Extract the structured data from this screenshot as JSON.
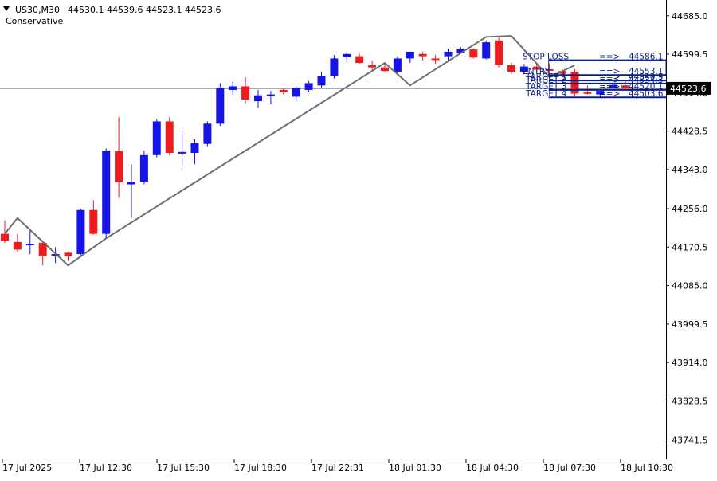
{
  "header": {
    "symbol_timeframe": "US30,M30",
    "ohlc": "44530.1 44539.6 44523.1 44523.6",
    "indicator_name": "Conservative"
  },
  "colors": {
    "bull": "#1414e6",
    "bear": "#ee1c1c",
    "zigzag": "#6e6e6e",
    "level_line": "#0b1f8a",
    "level_text": "#0b1f8a",
    "price_line": "#1a1a2e",
    "axis": "#000000"
  },
  "price_label": "44523.6",
  "levels": [
    {
      "name": "STOP LOSS",
      "arrow": "==>",
      "value_text": "44586.1",
      "value": 44586.1
    },
    {
      "name": "ENTRY",
      "arrow": "==>",
      "value_text": "44553.1",
      "value": 44553.1
    },
    {
      "name": "TARGET 1",
      "arrow": "==>",
      "value_text": "44540.9",
      "value": 44540.9
    },
    {
      "name": "TARGET 2",
      "arrow": "==>",
      "value_text": "44534.3",
      "value": 44534.3
    },
    {
      "name": "TARGET 3",
      "arrow": "==>",
      "value_text": "44520.1",
      "value": 44520.1
    },
    {
      "name": "TARGET 4",
      "arrow": "==>",
      "value_text": "44503.6",
      "value": 44503.6
    }
  ],
  "chart_data": {
    "type": "candlestick",
    "symbol": "US30",
    "timeframe": "M30",
    "ylim": [
      43700,
      44720
    ],
    "y_ticks": [
      "44685.0",
      "44599.5",
      "44514.0",
      "44428.5",
      "44343.0",
      "44256.0",
      "44170.5",
      "44085.0",
      "43999.5",
      "43914.0",
      "43828.5",
      "43741.5"
    ],
    "x_tick_labels": [
      "17 Jul 2025",
      "17 Jul 12:30",
      "17 Jul 15:30",
      "17 Jul 18:30",
      "17 Jul 22:31",
      "18 Jul 01:30",
      "18 Jul 04:30",
      "18 Jul 07:30",
      "18 Jul 10:30"
    ],
    "candles": [
      {
        "o": 44200,
        "h": 44230,
        "l": 44180,
        "c": 44185
      },
      {
        "o": 44182,
        "h": 44200,
        "l": 44160,
        "c": 44165
      },
      {
        "o": 44175,
        "h": 44210,
        "l": 44155,
        "c": 44178
      },
      {
        "o": 44180,
        "h": 44185,
        "l": 44130,
        "c": 44150
      },
      {
        "o": 44150,
        "h": 44170,
        "l": 44135,
        "c": 44155
      },
      {
        "o": 44158,
        "h": 44160,
        "l": 44140,
        "c": 44150
      },
      {
        "o": 44155,
        "h": 44255,
        "l": 44148,
        "c": 44253
      },
      {
        "o": 44253,
        "h": 44275,
        "l": 44198,
        "c": 44200
      },
      {
        "o": 44200,
        "h": 44390,
        "l": 44192,
        "c": 44385
      },
      {
        "o": 44384,
        "h": 44460,
        "l": 44280,
        "c": 44315
      },
      {
        "o": 44310,
        "h": 44355,
        "l": 44235,
        "c": 44315
      },
      {
        "o": 44315,
        "h": 44385,
        "l": 44310,
        "c": 44375
      },
      {
        "o": 44375,
        "h": 44455,
        "l": 44370,
        "c": 44450
      },
      {
        "o": 44450,
        "h": 44460,
        "l": 44375,
        "c": 44380
      },
      {
        "o": 44380,
        "h": 44430,
        "l": 44350,
        "c": 44382
      },
      {
        "o": 44380,
        "h": 44410,
        "l": 44355,
        "c": 44402
      },
      {
        "o": 44400,
        "h": 44450,
        "l": 44395,
        "c": 44445
      },
      {
        "o": 44445,
        "h": 44535,
        "l": 44440,
        "c": 44525
      },
      {
        "o": 44520,
        "h": 44538,
        "l": 44510,
        "c": 44528
      },
      {
        "o": 44528,
        "h": 44548,
        "l": 44490,
        "c": 44498
      },
      {
        "o": 44495,
        "h": 44520,
        "l": 44480,
        "c": 44508
      },
      {
        "o": 44510,
        "h": 44518,
        "l": 44488,
        "c": 44510
      },
      {
        "o": 44520,
        "h": 44525,
        "l": 44510,
        "c": 44515
      },
      {
        "o": 44505,
        "h": 44528,
        "l": 44495,
        "c": 44525
      },
      {
        "o": 44520,
        "h": 44540,
        "l": 44515,
        "c": 44535
      },
      {
        "o": 44530,
        "h": 44560,
        "l": 44525,
        "c": 44550
      },
      {
        "o": 44550,
        "h": 44598,
        "l": 44545,
        "c": 44590
      },
      {
        "o": 44593,
        "h": 44604,
        "l": 44582,
        "c": 44600
      },
      {
        "o": 44595,
        "h": 44600,
        "l": 44578,
        "c": 44580
      },
      {
        "o": 44575,
        "h": 44585,
        "l": 44562,
        "c": 44570
      },
      {
        "o": 44570,
        "h": 44578,
        "l": 44560,
        "c": 44562
      },
      {
        "o": 44560,
        "h": 44595,
        "l": 44555,
        "c": 44590
      },
      {
        "o": 44590,
        "h": 44605,
        "l": 44580,
        "c": 44605
      },
      {
        "o": 44600,
        "h": 44605,
        "l": 44585,
        "c": 44595
      },
      {
        "o": 44590,
        "h": 44598,
        "l": 44578,
        "c": 44588
      },
      {
        "o": 44595,
        "h": 44612,
        "l": 44585,
        "c": 44605
      },
      {
        "o": 44602,
        "h": 44615,
        "l": 44605,
        "c": 44612
      },
      {
        "o": 44610,
        "h": 44612,
        "l": 44590,
        "c": 44592
      },
      {
        "o": 44590,
        "h": 44630,
        "l": 44588,
        "c": 44626
      },
      {
        "o": 44630,
        "h": 44638,
        "l": 44570,
        "c": 44576
      },
      {
        "o": 44575,
        "h": 44580,
        "l": 44555,
        "c": 44560
      },
      {
        "o": 44560,
        "h": 44578,
        "l": 44555,
        "c": 44572
      },
      {
        "o": 44572,
        "h": 44578,
        "l": 44560,
        "c": 44565
      },
      {
        "o": 44566,
        "h": 44578,
        "l": 44555,
        "c": 44565
      },
      {
        "o": 44562,
        "h": 44566,
        "l": 44552,
        "c": 44556
      },
      {
        "o": 44560,
        "h": 44566,
        "l": 44508,
        "c": 44512
      },
      {
        "o": 44515,
        "h": 44530,
        "l": 44510,
        "c": 44512
      },
      {
        "o": 44510,
        "h": 44520,
        "l": 44505,
        "c": 44518
      },
      {
        "o": 44525,
        "h": 44533,
        "l": 44523,
        "c": 44531
      },
      {
        "o": 44530.1,
        "h": 44539.6,
        "l": 44523.1,
        "c": 44523.6
      }
    ],
    "zigzag": [
      {
        "i": 0,
        "y": 44200
      },
      {
        "i": 1,
        "y": 44235
      },
      {
        "i": 5,
        "y": 44130
      },
      {
        "i": 8,
        "y": 44190
      },
      {
        "i": 30,
        "y": 44580
      },
      {
        "i": 32,
        "y": 44530
      },
      {
        "i": 38,
        "y": 44638
      },
      {
        "i": 40,
        "y": 44640
      },
      {
        "i": 43,
        "y": 44548
      },
      {
        "i": 45,
        "y": 44575
      }
    ]
  }
}
